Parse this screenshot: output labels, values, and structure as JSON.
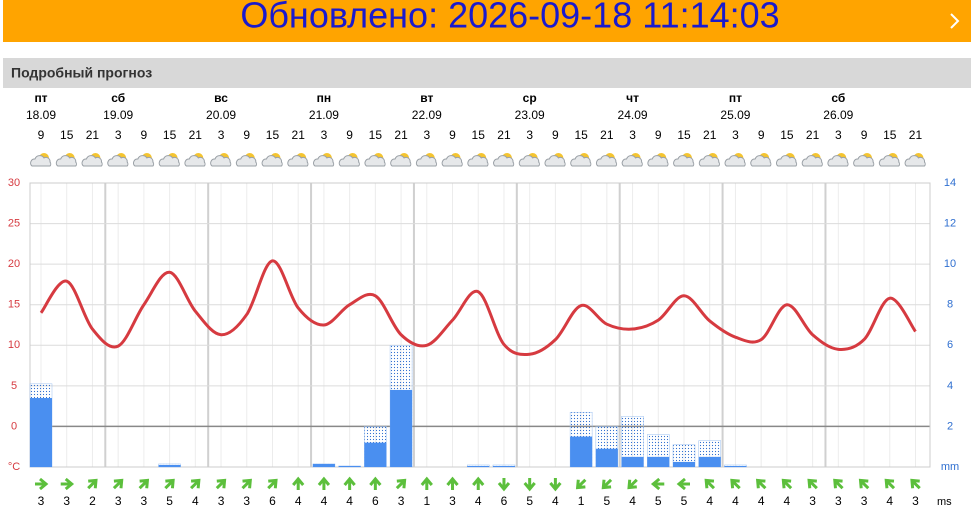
{
  "banner": {
    "text": "Обновлено: 2026-09-18 11:14:03"
  },
  "section_title": "Подробный прогноз",
  "chart_data": {
    "type": "weather",
    "days": [
      {
        "name": "пт",
        "date": "18.09"
      },
      {
        "name": "сб",
        "date": "19.09"
      },
      {
        "name": "вс",
        "date": "20.09"
      },
      {
        "name": "пн",
        "date": "21.09"
      },
      {
        "name": "вт",
        "date": "22.09"
      },
      {
        "name": "ср",
        "date": "23.09"
      },
      {
        "name": "чт",
        "date": "24.09"
      },
      {
        "name": "пт",
        "date": "25.09"
      },
      {
        "name": "сб",
        "date": "26.09"
      }
    ],
    "hours": [
      9,
      15,
      21,
      3,
      9,
      15,
      21,
      3,
      9,
      15,
      21,
      3,
      9,
      15,
      21,
      3,
      9,
      15,
      21,
      3,
      9,
      15,
      21,
      3,
      9,
      15,
      21,
      3,
      9,
      15,
      21,
      3,
      9,
      15,
      21
    ],
    "temperature": {
      "color": "#d63a40",
      "values": [
        14.0,
        17.9,
        12.0,
        9.9,
        15.0,
        19.0,
        14.2,
        11.3,
        13.8,
        20.4,
        14.6,
        12.5,
        15.0,
        16.1,
        11.3,
        10.0,
        13.1,
        16.6,
        10.1,
        8.9,
        10.7,
        14.9,
        12.6,
        12.0,
        13.1,
        16.1,
        13.0,
        11.0,
        10.7,
        15.0,
        11.3,
        9.5,
        10.7,
        15.8,
        11.7
      ]
    },
    "precipitation": {
      "color": "#4a8ff0",
      "values": [
        3.4,
        0,
        0,
        0,
        0,
        0.1,
        0,
        0,
        0,
        0,
        0,
        0.15,
        0.05,
        1.2,
        3.8,
        0,
        0,
        0.05,
        0.05,
        0,
        0,
        1.5,
        0.9,
        0.5,
        0.5,
        0.25,
        0.5,
        0.05,
        0,
        0,
        0,
        0,
        0,
        0,
        0
      ],
      "upper_values": [
        4.1,
        0,
        0,
        0,
        0,
        0.15,
        0,
        0,
        0,
        0,
        0,
        0.15,
        0.05,
        2.0,
        6.0,
        0,
        0,
        0.1,
        0.1,
        0,
        0,
        2.7,
        2.0,
        2.5,
        1.6,
        1.1,
        1.3,
        0.1,
        0,
        0,
        0,
        0,
        0,
        0,
        0
      ]
    },
    "ylim": [
      -5,
      30
    ],
    "yticks": [
      {
        "value": -5,
        "label": "°C"
      },
      0,
      5,
      10,
      15,
      20,
      25,
      30
    ],
    "y2lim": [
      0,
      14
    ],
    "y2ticks": [
      {
        "value": 0,
        "label": "mm"
      },
      2,
      4,
      6,
      8,
      10,
      12,
      14
    ],
    "wind": {
      "unit": "ms",
      "color": "#5cbf3c",
      "speeds": [
        3,
        3,
        2,
        3,
        3,
        5,
        4,
        3,
        3,
        6,
        4,
        4,
        4,
        6,
        3,
        1,
        3,
        4,
        6,
        5,
        4,
        1,
        5,
        4,
        5,
        5,
        4,
        4,
        4,
        4,
        3,
        3,
        3,
        4,
        3
      ],
      "angles": [
        0,
        0,
        -45,
        -45,
        -45,
        -45,
        -45,
        -45,
        -45,
        -45,
        -90,
        -90,
        -90,
        -90,
        -45,
        -90,
        -90,
        -90,
        90,
        90,
        90,
        135,
        135,
        135,
        180,
        180,
        -135,
        -135,
        -135,
        -135,
        -135,
        -135,
        -135,
        -135,
        -135
      ]
    },
    "grid": true
  }
}
